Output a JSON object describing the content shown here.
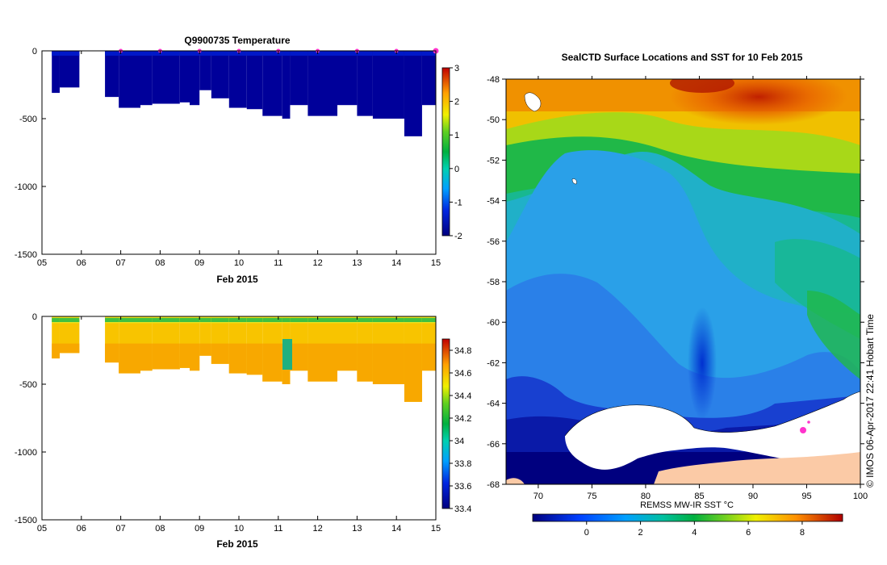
{
  "chart_data": [
    {
      "type": "heatmap",
      "title": "Q9900735  Temperature",
      "xlabel": "Feb 2015",
      "ylabel": "",
      "xlim": [
        5,
        15
      ],
      "ylim": [
        -1500,
        0
      ],
      "x_ticks": [
        "05",
        "06",
        "07",
        "08",
        "09",
        "10",
        "11",
        "12",
        "13",
        "14",
        "15"
      ],
      "y_ticks": [
        "0",
        "-500",
        "-1000",
        "-1500"
      ],
      "colorbar_ticks": [
        "3",
        "2",
        "1",
        "0",
        "-1",
        "-2"
      ],
      "colorbar_range": [
        -2,
        3
      ],
      "surface_markers": [
        7,
        8,
        9,
        10,
        11,
        12,
        13,
        14,
        15
      ],
      "profiles": [
        {
          "day": 5.25,
          "depth": 310
        },
        {
          "day": 5.45,
          "depth": 270
        },
        {
          "day": 6.6,
          "depth": 340
        },
        {
          "day": 6.95,
          "depth": 420
        },
        {
          "day": 7.5,
          "depth": 400
        },
        {
          "day": 7.8,
          "depth": 390
        },
        {
          "day": 8.5,
          "depth": 380
        },
        {
          "day": 8.75,
          "depth": 400
        },
        {
          "day": 9.0,
          "depth": 290
        },
        {
          "day": 9.3,
          "depth": 350
        },
        {
          "day": 9.75,
          "depth": 420
        },
        {
          "day": 10.2,
          "depth": 430
        },
        {
          "day": 10.6,
          "depth": 480
        },
        {
          "day": 11.1,
          "depth": 500
        },
        {
          "day": 11.3,
          "depth": 400
        },
        {
          "day": 11.75,
          "depth": 480
        },
        {
          "day": 12.5,
          "depth": 400
        },
        {
          "day": 13.0,
          "depth": 480
        },
        {
          "day": 13.4,
          "depth": 500
        },
        {
          "day": 13.75,
          "depth": 500
        },
        {
          "day": 14.2,
          "depth": 630
        },
        {
          "day": 14.65,
          "depth": 400
        },
        {
          "day": 15.0,
          "depth": 400
        }
      ],
      "temperature_layers": {
        "surface": -1.2,
        "mid": -1.7,
        "deep": -1.9
      }
    },
    {
      "type": "heatmap",
      "title": "",
      "xlabel": "Feb 2015",
      "xlim": [
        5,
        15
      ],
      "ylim": [
        -1500,
        0
      ],
      "x_ticks": [
        "05",
        "06",
        "07",
        "08",
        "09",
        "10",
        "11",
        "12",
        "13",
        "14",
        "15"
      ],
      "y_ticks": [
        "0",
        "-500",
        "-1000",
        "-1500"
      ],
      "colorbar_ticks": [
        "34.8",
        "34.6",
        "34.4",
        "34.2",
        "34",
        "33.8",
        "33.6",
        "33.4"
      ],
      "colorbar_range": [
        33.4,
        34.9
      ],
      "salinity_layers": {
        "surface": 34.0,
        "upper": 34.3,
        "mid": 34.45,
        "deep": 34.6
      },
      "anomaly": {
        "day": 11.3,
        "depth_range": [
          180,
          400
        ],
        "value": 34.1
      }
    },
    {
      "type": "heatmap",
      "title": "SealCTD Surface Locations and SST for 10 Feb 2015",
      "xlim": [
        67,
        100
      ],
      "ylim": [
        -68,
        -48
      ],
      "x_ticks": [
        "70",
        "75",
        "80",
        "85",
        "90",
        "95",
        "100"
      ],
      "y_ticks": [
        "-48",
        "-50",
        "-52",
        "-54",
        "-56",
        "-58",
        "-60",
        "-62",
        "-64",
        "-66",
        "-68"
      ],
      "colorbar_label": "REMSS MW-IR SST °C",
      "colorbar_ticks": [
        "0",
        "2",
        "4",
        "6",
        "8"
      ],
      "colorbar_range": [
        -2,
        9.5
      ],
      "float_location": {
        "lon": 94.6,
        "lat": -66.3
      }
    }
  ],
  "copyright": "© IMOS 06-Apr-2017 22:41 Hobart Time",
  "colors": {
    "ice": "#ffffff",
    "land": "#fbcaa6",
    "marker": "#ff33cc"
  }
}
